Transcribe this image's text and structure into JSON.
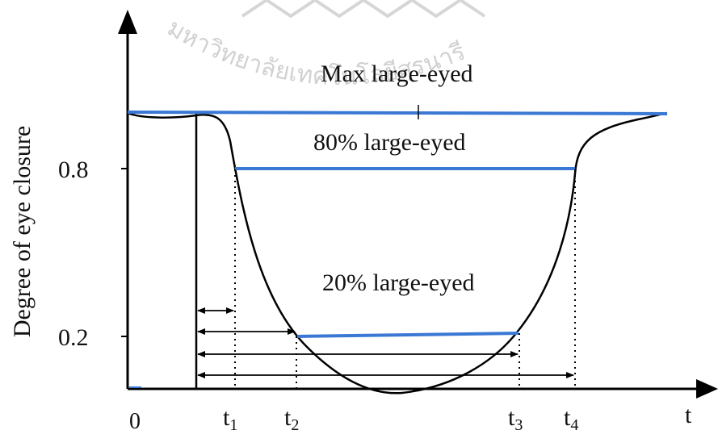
{
  "watermark": {
    "text": "มหาวิทยาลัยเทคโนโลยีสุรนารี",
    "color": "#cfcfcf"
  },
  "axes": {
    "y_title": "Degree of eye closure",
    "x_title": "t",
    "origin_label": "0",
    "y_ticks": [
      "0.8",
      "0.2"
    ]
  },
  "levels": {
    "max_label": "Max large-eyed",
    "p80_label": "80% large-eyed",
    "p20_label": "20% large-eyed"
  },
  "time_marks": [
    {
      "base": "t",
      "sub": "1"
    },
    {
      "base": "t",
      "sub": "2"
    },
    {
      "base": "t",
      "sub": "3"
    },
    {
      "base": "t",
      "sub": "4"
    }
  ],
  "colors": {
    "level_line": "#3a78d4",
    "curve": "#000000",
    "axis": "#000000"
  }
}
